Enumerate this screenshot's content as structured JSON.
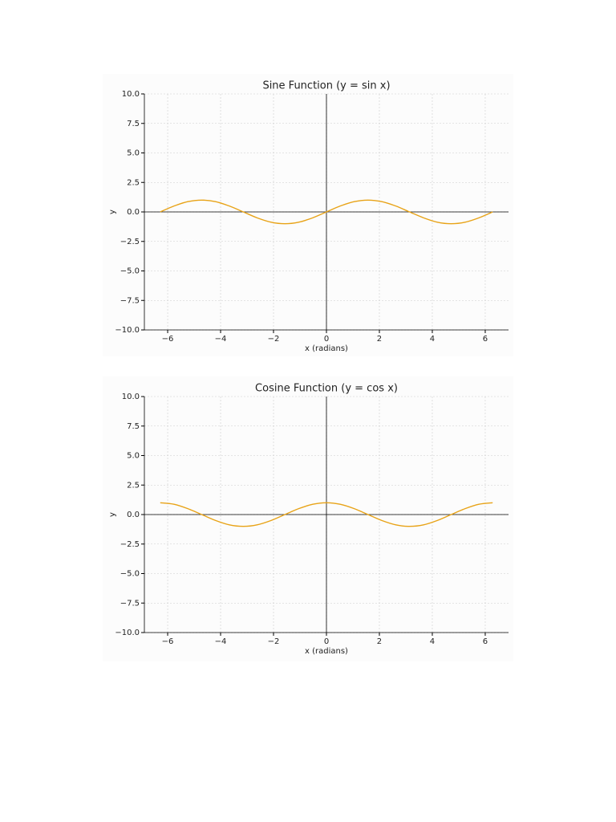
{
  "chart_data": [
    {
      "type": "line",
      "title": "Sine Function (y = sin x)",
      "x_label": "x (radians)",
      "y_label": "y",
      "x": [
        -6.28,
        -5.76,
        -5.24,
        -4.71,
        -4.19,
        -3.67,
        -3.14,
        -2.62,
        -2.09,
        -1.57,
        -1.05,
        -0.52,
        0,
        0.52,
        1.05,
        1.57,
        2.09,
        2.62,
        3.14,
        3.67,
        4.19,
        4.71,
        5.24,
        5.76,
        6.28
      ],
      "series": [
        {
          "color": "#e8a317",
          "values": [
            0,
            0.5,
            0.87,
            1,
            0.87,
            0.5,
            0,
            -0.5,
            -0.87,
            -1,
            -0.87,
            -0.5,
            0,
            0.5,
            0.87,
            1,
            0.87,
            0.5,
            0,
            -0.5,
            -0.87,
            -1,
            -0.87,
            -0.5,
            0
          ]
        }
      ],
      "xlim": [
        -6.88,
        6.88
      ],
      "ylim": [
        -10,
        10
      ],
      "xticks": [
        {
          "value": -6,
          "label": "−6"
        },
        {
          "value": -4,
          "label": "−4"
        },
        {
          "value": -2,
          "label": "−2"
        },
        0,
        2,
        4,
        6
      ],
      "yticks": [
        {
          "value": -10,
          "label": "−10.0"
        },
        {
          "value": -7.5,
          "label": "−7.5"
        },
        {
          "value": -5,
          "label": "−5.0"
        },
        {
          "value": -2.5,
          "label": "−2.5"
        },
        {
          "value": 0,
          "label": "0.0"
        },
        2.5,
        {
          "value": 5,
          "label": "5.0"
        },
        7.5,
        {
          "value": 10,
          "label": "10.0"
        }
      ],
      "grid": true
    },
    {
      "type": "line",
      "title": "Cosine Function (y = cos x)",
      "x_label": "x (radians)",
      "y_label": "y",
      "x": [
        -6.28,
        -5.76,
        -5.24,
        -4.71,
        -4.19,
        -3.67,
        -3.14,
        -2.62,
        -2.09,
        -1.57,
        -1.05,
        -0.52,
        0,
        0.52,
        1.05,
        1.57,
        2.09,
        2.62,
        3.14,
        3.67,
        4.19,
        4.71,
        5.24,
        5.76,
        6.28
      ],
      "series": [
        {
          "color": "#e8a317",
          "values": [
            1,
            0.87,
            0.5,
            0,
            -0.5,
            -0.87,
            -1,
            -0.87,
            -0.5,
            0,
            0.5,
            0.87,
            1,
            0.87,
            0.5,
            0,
            -0.5,
            -0.87,
            -1,
            -0.87,
            -0.5,
            0,
            0.5,
            0.87,
            1
          ]
        }
      ],
      "xlim": [
        -6.88,
        6.88
      ],
      "ylim": [
        -10,
        10
      ],
      "xticks": [
        {
          "value": -6,
          "label": "−6"
        },
        {
          "value": -4,
          "label": "−4"
        },
        {
          "value": -2,
          "label": "−2"
        },
        0,
        2,
        4,
        6
      ],
      "yticks": [
        {
          "value": -10,
          "label": "−10.0"
        },
        {
          "value": -7.5,
          "label": "−7.5"
        },
        {
          "value": -5,
          "label": "−5.0"
        },
        {
          "value": -2.5,
          "label": "−2.5"
        },
        {
          "value": 0,
          "label": "0.0"
        },
        2.5,
        {
          "value": 5,
          "label": "5.0"
        },
        7.5,
        {
          "value": 10,
          "label": "10.0"
        }
      ],
      "grid": true
    }
  ]
}
